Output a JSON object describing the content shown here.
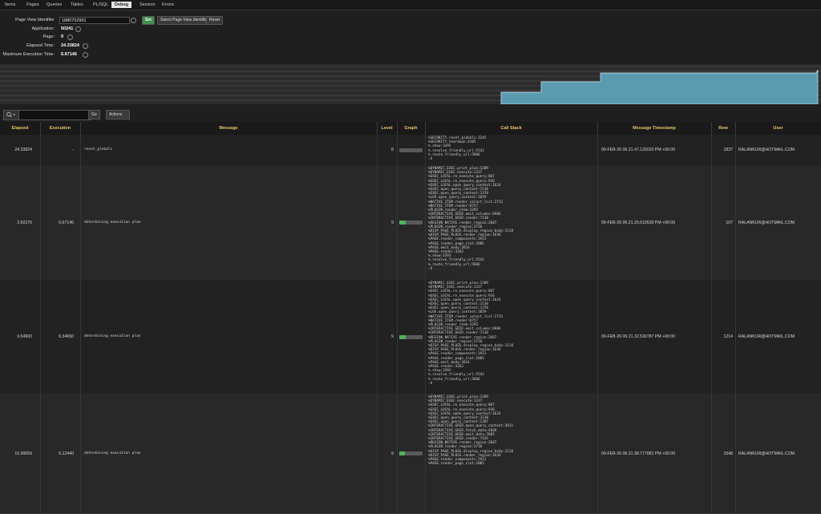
{
  "tabs": [
    "Items",
    "Pages",
    "Queries",
    "Tables",
    "PL/SQL",
    "Debug",
    "Session",
    "Errors"
  ],
  "active_tab": 5,
  "form": {
    "fields": [
      {
        "label": "Page View Identifier",
        "value": "1880702951"
      },
      {
        "label": "Application:",
        "value": "50241"
      },
      {
        "label": "Page:",
        "value": "9"
      },
      {
        "label": "Elapsed Time:",
        "value": "24.33824"
      },
      {
        "label": "Maximum Execution Time:",
        "value": "6.67146"
      }
    ],
    "buttons": [
      "Set",
      "Select Page View Identifier",
      "Reset"
    ]
  },
  "toolbar": {
    "go": "Go",
    "actions": "Actions"
  },
  "table": {
    "columns": [
      "Elapsed",
      "Execution",
      "Message",
      "Level",
      "Graph",
      "Call Stack",
      "Message Timestamp",
      "Row",
      "User"
    ],
    "rows": [
      {
        "elapsed": "24.33824",
        "execution": "-",
        "message": "reset_globals",
        "level": "8",
        "stack": [
          "%SECURITY.reset_globals:3245",
          "%SECURITY.teardown:4105",
          "%.show:3395",
          "%.resolve_friendly_url:5542",
          "%.route_friendly_url:5606",
          ":4"
        ],
        "timestamp": "09-FEB-26 06.21.47.126020 PM +00:00",
        "row": "1837",
        "user": "RALANKUR@HOTMAIL.COM"
      },
      {
        "elapsed": "2.82276",
        "execution": "6.67146",
        "message": "determining execution plan",
        "level": "9",
        "stack": [
          "%DYNAMIC_EXEC.print_plan:1289",
          "%DYNAMIC_EXEC.execute:1337",
          "%EXEC_LOCAL.re_execute_query:807",
          "%EXEC_LOCAL.re_execute_query:936",
          "%EXEC_LOCAL.open_query_context:1624",
          "%EXEC.open_query_context:1130",
          "%EXEC.open_query_context:1370",
          "%LOV.open_query_context:1059",
          "%NATIVE_ITEM.render_select_list:2733",
          "%NATIVE_ITEM.render:8757",
          "%PLUGIN.render_item:3295",
          "%INTERACTIVE_GRID.emit_columns:6984",
          "%INTERACTIVE_GRID.render:7130",
          "%REGION_NATIVE.render_region:2607",
          "%PLUGIN.render_region:3718",
          "%DISP_PAGE_PLUGS.display_region_body:1118",
          "%DISP_PAGE_PLUGS.render_region:1636",
          "%PAGE.render_components:1912",
          "%PAGE.render_page_slot:2005",
          "%PAGE.emit_body:3014",
          "%PAGE.render:3262",
          "%.show:3393",
          "%.resolve_friendly_url:5542",
          "%.route_friendly_url:5606",
          ":4"
        ],
        "timestamp": "09-FEB-26 06.21.25.610530 PM +00:00",
        "row": "107",
        "user": "RALANKUR@HOTMAIL.COM"
      },
      {
        "elapsed": "9.54900",
        "execution": "6.34650",
        "message": "determining execution plan",
        "level": "9",
        "stack": [
          "%DYNAMIC_EXEC.print_plan:1289",
          "%DYNAMIC_EXEC.execute:1337",
          "%EXEC_LOCAL.re_execute_query:807",
          "%EXEC_LOCAL.re_execute_query:936",
          "%EXEC_LOCAL.open_query_context:1624",
          "%EXEC.open_query_context:1130",
          "%EXEC.open_query_context:1370",
          "%LOV.open_query_context:1059",
          "%NATIVE_ITEM.render_select_list:2733",
          "%NATIVE_ITEM.render:8757",
          "%PLUGIN.render_item:3295",
          "%INTERACTIVE_GRID.emit_columns:6984",
          "%INTERACTIVE_GRID.render:7130",
          "%REGION_NATIVE.render_region:2607",
          "%PLUGIN.render_region:3718",
          "%DISP_PAGE_PLUGS.display_region_body:1118",
          "%DISP_PAGE_PLUGS.render_region:1636",
          "%PAGE.render_components:1912",
          "%PAGE.render_page_slot:2005",
          "%PAGE.emit_body:3014",
          "%PAGE.render:3262",
          "%.show:3393",
          "%.resolve_friendly_url:5542",
          "%.route_friendly_url:5606",
          ":4"
        ],
        "timestamp": "09-FEB-26 06.21.32.530787 PM +00:00",
        "row": "1214",
        "user": "RALANKUR@HOTMAIL.COM"
      },
      {
        "elapsed": "15.99069",
        "execution": "6.12440",
        "message": "determining execution plan",
        "level": "9",
        "stack": [
          "%DYNAMIC_EXEC.print_plan:1289",
          "%DYNAMIC_EXEC.execute:1337",
          "%EXEC_LOCAL.re_execute_query:807",
          "%EXEC_LOCAL.re_execute_query:936",
          "%EXEC_LOCAL.open_query_context:1624",
          "%EXEC.open_query_context:1130",
          "%EXEC.open_query_context:1287",
          "%INTERACTIVE_GRID.open_query_context:3911",
          "%INTERACTIVE_GRID.fetch_data:4669",
          "%INTERACTIVE_GRID.emit_data:7005",
          "%INTERACTIVE_GRID.render:7435",
          "%REGION_NATIVE.render_region:2607",
          "%PLUGIN.render_region:3718",
          "%DISP_PAGE_PLUGS.display_region_body:1118",
          "%DISP_PAGE_PLUGS.render_region:1636",
          "%PAGE.render_components:1912",
          "%PAGE.render_page_slot:2005"
        ],
        "timestamp": "09-FEB-26 06.21.38.777881 PM +00:00",
        "row": "1548",
        "user": "RALANKUR@HOTMAIL.COM"
      }
    ]
  }
}
